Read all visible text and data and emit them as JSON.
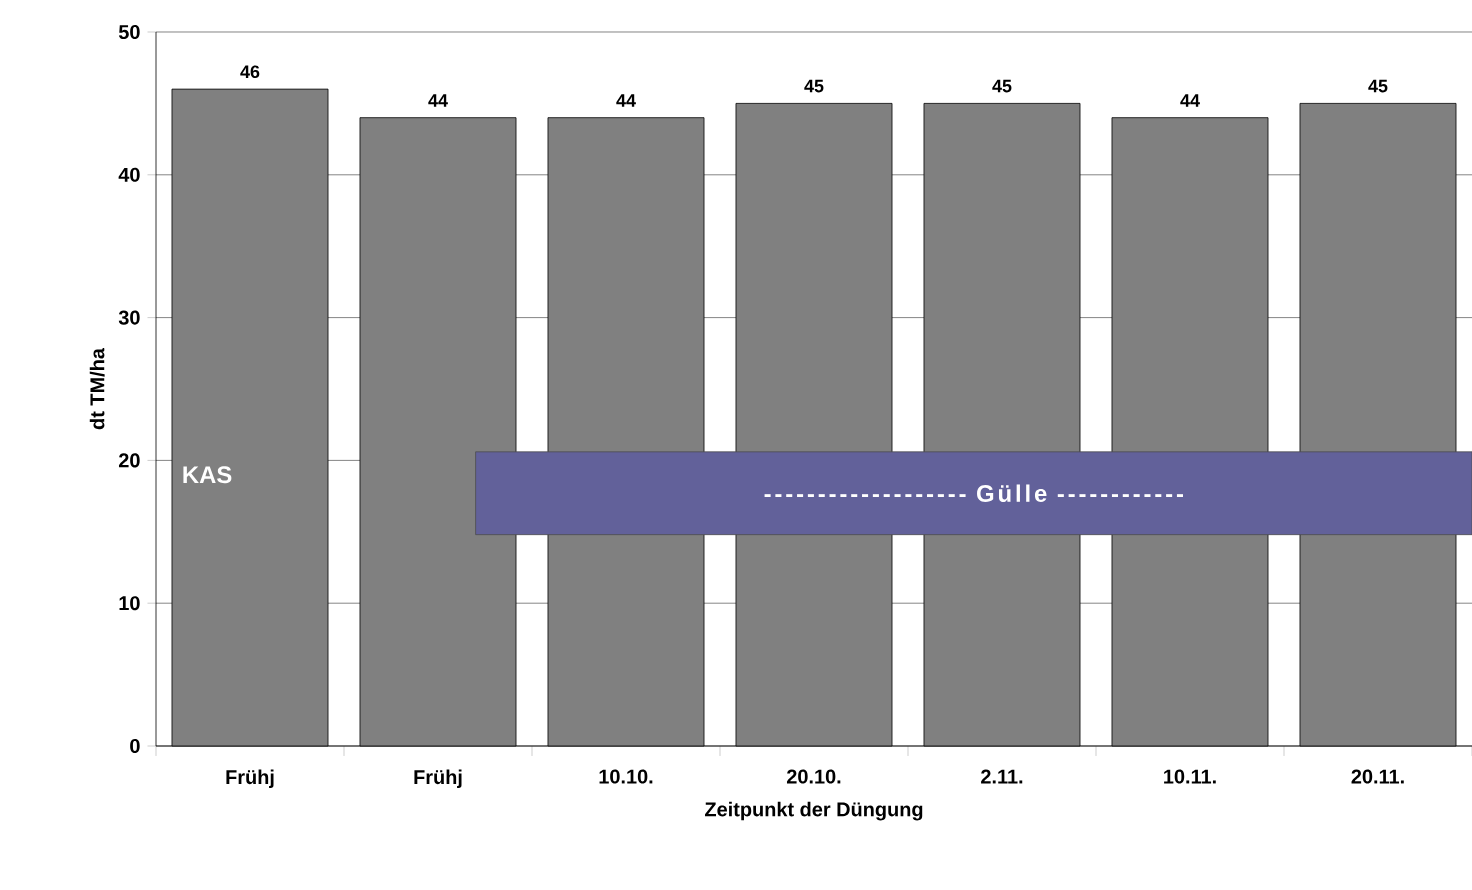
{
  "chart_data": {
    "type": "bar",
    "xlabel": "Zeitpunkt der Düngung",
    "ylabel": "dt TM/ha",
    "categories": [
      "Frühj",
      "Frühj",
      "10.10.",
      "20.10.",
      "2.11.",
      "10.11.",
      "20.11."
    ],
    "values": [
      46,
      44,
      44,
      45,
      45,
      44,
      45
    ],
    "color": "#808080",
    "ylim": [
      0,
      50
    ],
    "yticks": [
      0,
      10,
      20,
      30,
      40,
      50
    ],
    "grid": "y",
    "data_labels": true,
    "annotations": [
      "KAS",
      "------------------- Gülle ------------"
    ]
  }
}
